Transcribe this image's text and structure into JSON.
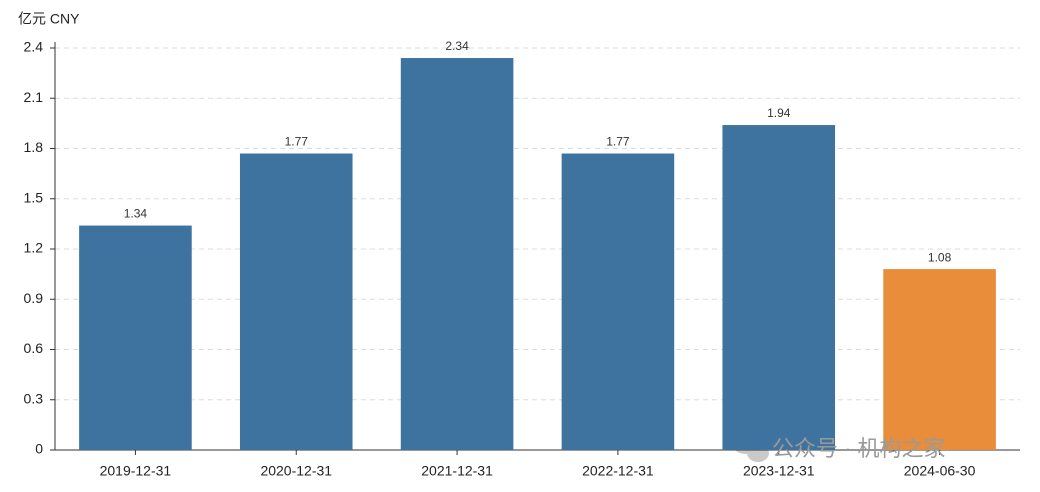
{
  "chart_data": {
    "type": "bar",
    "y_unit_label": "亿元  CNY",
    "categories": [
      "2019-12-31",
      "2020-12-31",
      "2021-12-31",
      "2022-12-31",
      "2023-12-31",
      "2024-06-30"
    ],
    "values": [
      1.34,
      1.77,
      2.34,
      1.77,
      1.94,
      1.08
    ],
    "colors": [
      "#3d739e",
      "#3d739e",
      "#3d739e",
      "#3d739e",
      "#3d739e",
      "#e98d3a"
    ],
    "ylim": [
      0,
      2.4
    ],
    "yticks": [
      0,
      0.3,
      0.6,
      0.9,
      1.2,
      1.5,
      1.8,
      2.1,
      2.4
    ],
    "grid": true,
    "watermark": "公众号 · 机构之家"
  }
}
